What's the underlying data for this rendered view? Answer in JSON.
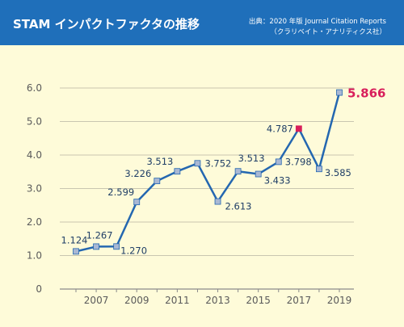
{
  "header": {
    "title": "STAM インパクトファクタの推移",
    "source_line1": "出典：2020 年版 Journal Citation Reports",
    "source_line2": "（クラリベイト・アナリティクス社）"
  },
  "colors": {
    "header_bg": "#1f6fba",
    "background": "#fefbd9",
    "line": "#2467b0",
    "marker_fill": "#a9b8d4",
    "highlight_marker": "#d81e5b",
    "highlight_label": "#d81e5b"
  },
  "chart_data": {
    "type": "line",
    "title": "STAM インパクトファクタの推移",
    "xlabel": "",
    "ylabel": "",
    "ylim": [
      0,
      6.0
    ],
    "yticks": [
      0,
      1.0,
      2.0,
      3.0,
      4.0,
      5.0,
      6.0
    ],
    "ytick_labels": [
      "0",
      "1.0",
      "2.0",
      "3.0",
      "4.0",
      "5.0",
      "6.0"
    ],
    "xticks": [
      2007,
      2009,
      2011,
      2013,
      2015,
      2017,
      2019
    ],
    "xtick_labels": [
      "2007",
      "2009",
      "2011",
      "2013",
      "2015",
      "2017",
      "2019"
    ],
    "grid": "horizontal",
    "series": [
      {
        "x": [
          2006,
          2007,
          2008,
          2009,
          2010,
          2011,
          2012,
          2013,
          2014,
          2015,
          2016,
          2017,
          2018,
          2019
        ],
        "values": [
          1.124,
          1.267,
          1.27,
          2.599,
          3.226,
          3.513,
          3.752,
          2.613,
          3.513,
          3.433,
          3.798,
          4.787,
          3.585,
          5.866
        ],
        "labels": [
          "1.124",
          "1.267",
          "1.270",
          "2.599",
          "3.226",
          "3.513",
          "3.752",
          "2.613",
          "3.513",
          "3.433",
          "3.798",
          "4.787",
          "3.585",
          "5.866"
        ]
      }
    ],
    "highlight_x": [
      2017
    ],
    "emphasized_label_x": 2019
  }
}
